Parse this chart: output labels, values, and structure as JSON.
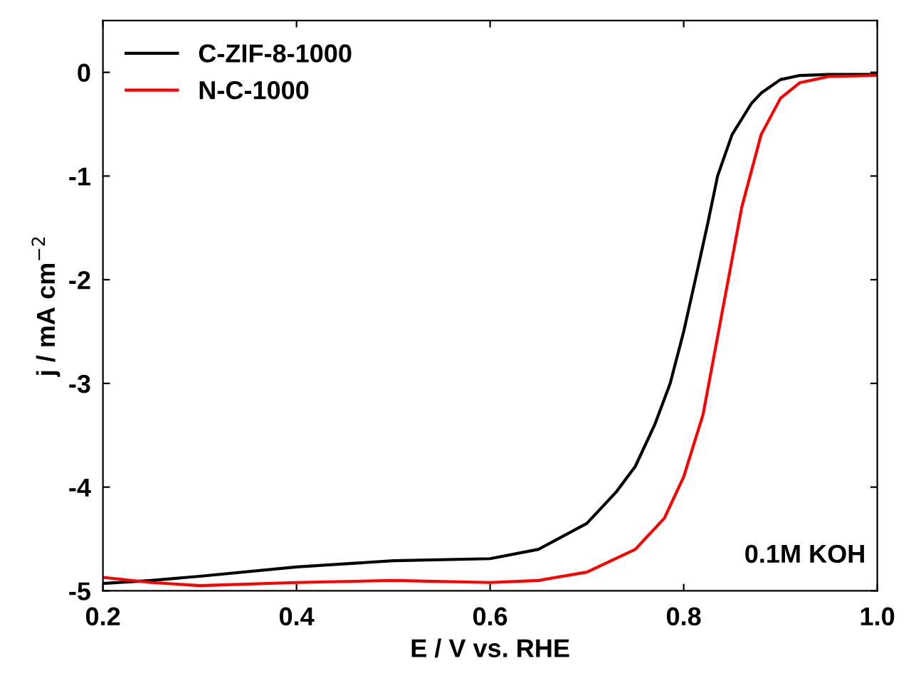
{
  "chart_data": {
    "type": "line",
    "xlabel": "E / V vs. RHE",
    "ylabel": "j / mA cm$^{−2}$",
    "xlim": [
      0.2,
      1.0
    ],
    "xticks": [
      0.2,
      0.4,
      0.6,
      0.8,
      {
        "value": 1.0,
        "label": "1.0"
      }
    ],
    "ylim": [
      -5,
      0.5
    ],
    "yticks": [
      -5,
      -4,
      -3,
      -2,
      -1,
      0
    ],
    "legend": "top left",
    "grid": false,
    "marker": "none",
    "line_style": "solid",
    "annotations": [
      "0.1M KOH"
    ],
    "series": [
      {
        "name": "C-ZIF-8-1000",
        "color": "#000000",
        "x": [
          0.2,
          0.25,
          0.3,
          0.4,
          0.5,
          0.6,
          0.65,
          0.7,
          0.73,
          0.75,
          0.77,
          0.786,
          0.8,
          0.812,
          0.825,
          0.835,
          0.85,
          0.86,
          0.87,
          0.88,
          0.9,
          0.92,
          0.95,
          1.0
        ],
        "values": [
          -4.93,
          -4.9,
          -4.86,
          -4.77,
          -4.71,
          -4.69,
          -4.6,
          -4.35,
          -4.05,
          -3.8,
          -3.4,
          -3.0,
          -2.5,
          -2.0,
          -1.45,
          -1.0,
          -0.6,
          -0.45,
          -0.3,
          -0.2,
          -0.07,
          -0.03,
          -0.02,
          -0.02
        ]
      },
      {
        "name": "N-C-1000",
        "color": "#ff0000",
        "x": [
          0.2,
          0.25,
          0.3,
          0.4,
          0.5,
          0.6,
          0.65,
          0.7,
          0.75,
          0.78,
          0.8,
          0.82,
          0.84,
          0.86,
          0.88,
          0.9,
          0.92,
          0.95,
          1.0
        ],
        "values": [
          -4.87,
          -4.92,
          -4.95,
          -4.92,
          -4.9,
          -4.92,
          -4.9,
          -4.82,
          -4.6,
          -4.3,
          -3.9,
          -3.3,
          -2.3,
          -1.3,
          -0.6,
          -0.25,
          -0.1,
          -0.04,
          -0.03
        ]
      }
    ]
  }
}
